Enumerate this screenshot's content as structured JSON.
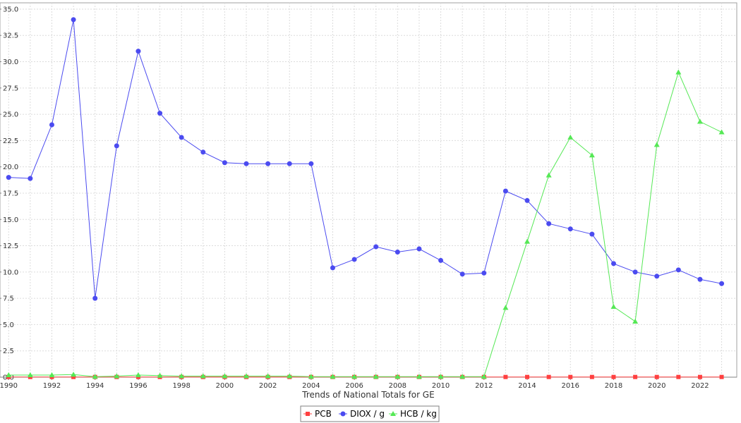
{
  "chart_data": {
    "type": "line",
    "title": "",
    "xlabel": "Trends of National Totals for GE",
    "ylabel": "",
    "xlim": [
      1989.6,
      2023.7
    ],
    "ylim": [
      0,
      35.6
    ],
    "x_ticks": [
      1990,
      1992,
      1994,
      1996,
      1998,
      2000,
      2002,
      2004,
      2006,
      2008,
      2010,
      2012,
      2014,
      2016,
      2018,
      2020,
      2022
    ],
    "y_ticks": [
      0.0,
      2.5,
      5.0,
      7.5,
      10.0,
      12.5,
      15.0,
      17.5,
      20.0,
      22.5,
      25.0,
      27.5,
      30.0,
      32.5,
      35.0
    ],
    "y_tick_labels": [
      "0.0",
      "2.5",
      "5.0",
      "7.5",
      "10.0",
      "12.5",
      "15.0",
      "17.5",
      "20.0",
      "22.5",
      "25.0",
      "27.5",
      "30.0",
      "32.5",
      "35.0"
    ],
    "grid": true,
    "legend_position": "bottom",
    "x": [
      1990,
      1991,
      1992,
      1993,
      1994,
      1995,
      1996,
      1997,
      1998,
      1999,
      2000,
      2001,
      2002,
      2003,
      2004,
      2005,
      2006,
      2007,
      2008,
      2009,
      2010,
      2011,
      2012,
      2013,
      2014,
      2015,
      2016,
      2017,
      2018,
      2019,
      2020,
      2021,
      2022,
      2023
    ],
    "series": [
      {
        "name": "PCB",
        "color": "#ff4040",
        "marker": "square",
        "values": [
          0.02,
          0.02,
          0.02,
          0.02,
          0.02,
          0.02,
          0.02,
          0.02,
          0.02,
          0.02,
          0.02,
          0.02,
          0.02,
          0.02,
          0.02,
          0.02,
          0.02,
          0.02,
          0.02,
          0.02,
          0.02,
          0.02,
          0.02,
          0.02,
          0.02,
          0.02,
          0.02,
          0.02,
          0.02,
          0.02,
          0.02,
          0.02,
          0.02,
          0.02
        ]
      },
      {
        "name": "DIOX / g",
        "color": "#4b4bf0",
        "marker": "circle",
        "values": [
          19.0,
          18.9,
          24.0,
          34.0,
          7.5,
          22.0,
          31.0,
          25.1,
          22.8,
          21.4,
          20.4,
          20.3,
          20.3,
          20.3,
          20.3,
          10.4,
          11.2,
          12.4,
          11.9,
          12.2,
          11.1,
          9.8,
          9.9,
          17.7,
          16.8,
          14.6,
          14.1,
          13.6,
          10.8,
          10.0,
          9.6,
          10.2,
          9.3,
          8.9
        ]
      },
      {
        "name": "HCB / kg",
        "color": "#55e855",
        "marker": "triangle",
        "values": [
          0.2,
          0.2,
          0.2,
          0.25,
          0.05,
          0.1,
          0.2,
          0.15,
          0.1,
          0.1,
          0.1,
          0.1,
          0.1,
          0.1,
          0.05,
          0.05,
          0.05,
          0.05,
          0.05,
          0.05,
          0.05,
          0.05,
          0.05,
          6.6,
          12.9,
          19.2,
          22.8,
          21.1,
          6.7,
          5.3,
          22.1,
          29.0,
          24.3,
          23.3
        ]
      }
    ]
  }
}
